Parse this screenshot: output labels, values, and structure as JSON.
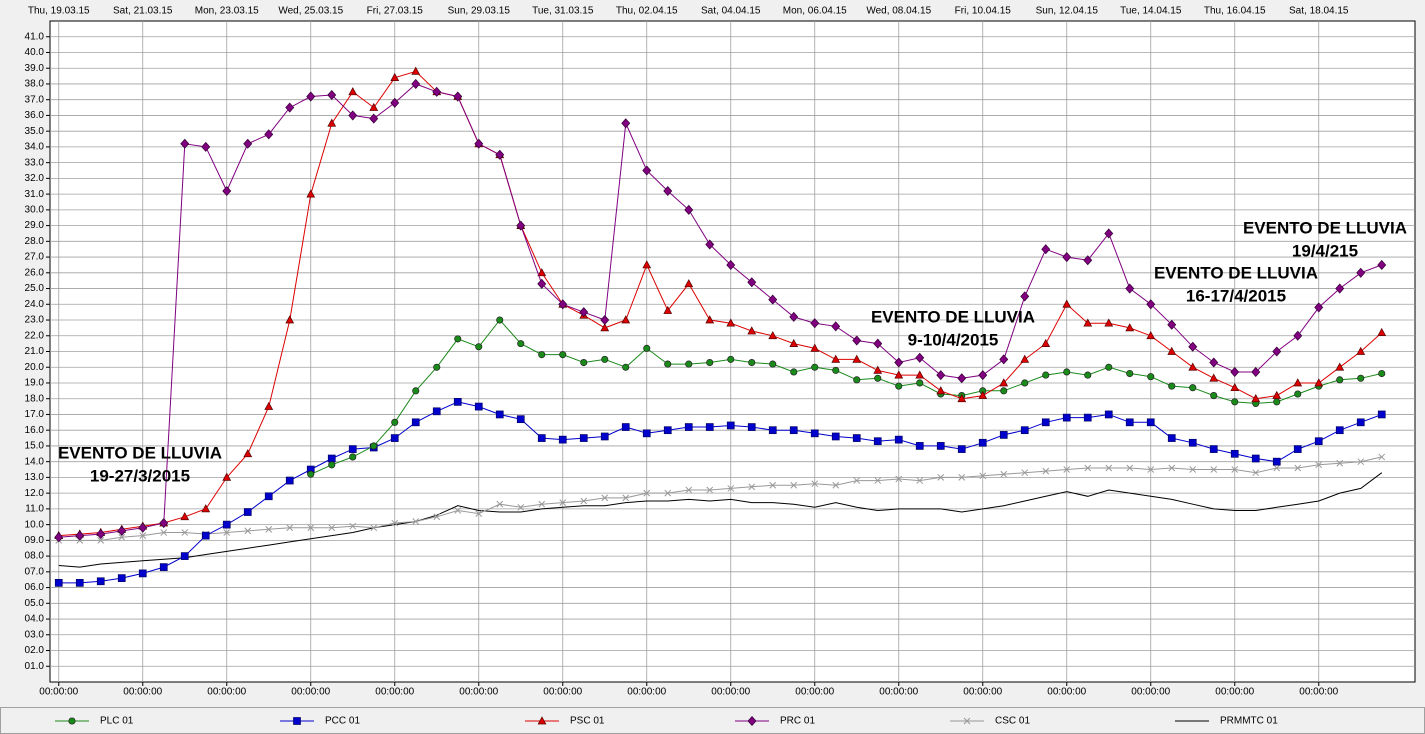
{
  "chart_data": {
    "type": "line",
    "x": [
      "2015-03-19T00:00",
      "2015-03-19T12:00",
      "2015-03-20T00:00",
      "2015-03-20T12:00",
      "2015-03-21T00:00",
      "2015-03-21T12:00",
      "2015-03-22T00:00",
      "2015-03-22T12:00",
      "2015-03-23T00:00",
      "2015-03-23T12:00",
      "2015-03-24T00:00",
      "2015-03-24T12:00",
      "2015-03-25T00:00",
      "2015-03-25T12:00",
      "2015-03-26T00:00",
      "2015-03-26T12:00",
      "2015-03-27T00:00",
      "2015-03-27T12:00",
      "2015-03-28T00:00",
      "2015-03-28T12:00",
      "2015-03-29T00:00",
      "2015-03-29T12:00",
      "2015-03-30T00:00",
      "2015-03-30T12:00",
      "2015-03-31T00:00",
      "2015-03-31T12:00",
      "2015-04-01T00:00",
      "2015-04-01T12:00",
      "2015-04-02T00:00",
      "2015-04-02T12:00",
      "2015-04-03T00:00",
      "2015-04-03T12:00",
      "2015-04-04T00:00",
      "2015-04-04T12:00",
      "2015-04-05T00:00",
      "2015-04-05T12:00",
      "2015-04-06T00:00",
      "2015-04-06T12:00",
      "2015-04-07T00:00",
      "2015-04-07T12:00",
      "2015-04-08T00:00",
      "2015-04-08T12:00",
      "2015-04-09T00:00",
      "2015-04-09T12:00",
      "2015-04-10T00:00",
      "2015-04-10T12:00",
      "2015-04-11T00:00",
      "2015-04-11T12:00",
      "2015-04-12T00:00",
      "2015-04-12T12:00",
      "2015-04-13T00:00",
      "2015-04-13T12:00",
      "2015-04-14T00:00",
      "2015-04-14T12:00",
      "2015-04-15T00:00",
      "2015-04-15T12:00",
      "2015-04-16T00:00",
      "2015-04-16T12:00",
      "2015-04-17T00:00",
      "2015-04-17T12:00",
      "2015-04-18T00:00",
      "2015-04-18T12:00",
      "2015-04-19T00:00",
      "2015-04-19T12:00"
    ],
    "series": [
      {
        "name": "PLC 01",
        "color": "#1a8a1a",
        "marker": "circle",
        "values": [
          null,
          null,
          null,
          null,
          null,
          null,
          null,
          null,
          null,
          null,
          null,
          null,
          13.2,
          13.8,
          14.3,
          15,
          16.5,
          18.5,
          20,
          21.8,
          21.3,
          23,
          21.5,
          20.8,
          20.8,
          20.3,
          20.5,
          20,
          21.2,
          20.2,
          20.2,
          20.3,
          20.5,
          20.3,
          20.2,
          19.7,
          20,
          19.8,
          19.2,
          19.3,
          18.8,
          19,
          18.3,
          18.2,
          18.5,
          18.5,
          19,
          19.5,
          19.7,
          19.5,
          20,
          19.6,
          19.4,
          18.8,
          18.7,
          18.2,
          17.8,
          17.7,
          17.8,
          18.3,
          18.8,
          19.2,
          19.3,
          19.6
        ]
      },
      {
        "name": "PCC 01",
        "color": "#0000cc",
        "marker": "square",
        "values": [
          6.3,
          6.3,
          6.4,
          6.6,
          6.9,
          7.3,
          8,
          9.3,
          10,
          10.8,
          11.8,
          12.8,
          13.5,
          14.2,
          14.8,
          14.9,
          15.5,
          16.5,
          17.2,
          17.8,
          17.5,
          17,
          16.7,
          15.5,
          15.4,
          15.5,
          15.6,
          16.2,
          15.8,
          16,
          16.2,
          16.2,
          16.3,
          16.2,
          16,
          16,
          15.8,
          15.6,
          15.5,
          15.3,
          15.4,
          15,
          15,
          14.8,
          15.2,
          15.7,
          16,
          16.5,
          16.8,
          16.8,
          17,
          16.5,
          16.5,
          15.5,
          15.2,
          14.8,
          14.5,
          14.2,
          14,
          14.8,
          15.3,
          16,
          16.5,
          17
        ]
      },
      {
        "name": "PSC 01",
        "color": "#dd0000",
        "marker": "triangle",
        "values": [
          9.3,
          9.4,
          9.5,
          9.7,
          9.9,
          10.1,
          10.5,
          11,
          13,
          14.5,
          17.5,
          23,
          31,
          35.5,
          37.5,
          36.5,
          38.4,
          38.8,
          37.5,
          37.2,
          34.2,
          33.5,
          29,
          26,
          24,
          23.3,
          22.5,
          23,
          26.5,
          23.6,
          25.3,
          23,
          22.8,
          22.3,
          22,
          21.5,
          21.2,
          20.5,
          20.5,
          19.8,
          19.5,
          19.5,
          18.5,
          18,
          18.2,
          19,
          20.5,
          21.5,
          24,
          22.8,
          22.8,
          22.5,
          22,
          21,
          20,
          19.3,
          18.7,
          18,
          18.2,
          19,
          19,
          20,
          21,
          22.2
        ]
      },
      {
        "name": "PRC 01",
        "color": "#800080",
        "marker": "diamond",
        "values": [
          9.2,
          9.3,
          9.4,
          9.6,
          9.8,
          10.1,
          34.2,
          34,
          31.2,
          34.2,
          34.8,
          36.5,
          37.2,
          37.3,
          36,
          35.8,
          36.8,
          38,
          37.5,
          37.2,
          34.2,
          33.5,
          29,
          25.3,
          24,
          23.5,
          23,
          35.5,
          32.5,
          31.2,
          30,
          27.8,
          26.5,
          25.4,
          24.3,
          23.2,
          22.8,
          22.6,
          21.7,
          21.5,
          20.3,
          20.6,
          19.5,
          19.3,
          19.5,
          20.5,
          24.5,
          27.5,
          27,
          26.8,
          28.5,
          25,
          24,
          22.7,
          21.3,
          20.3,
          19.7,
          19.7,
          21,
          22,
          23.8,
          25,
          26,
          26.5
        ]
      },
      {
        "name": "CSC 01",
        "color": "#999999",
        "marker": "x",
        "values": [
          9,
          9,
          9,
          9.2,
          9.3,
          9.5,
          9.5,
          9.4,
          9.5,
          9.6,
          9.7,
          9.8,
          9.8,
          9.8,
          9.9,
          9.8,
          10.1,
          10.2,
          10.5,
          10.9,
          10.7,
          11.3,
          11.1,
          11.3,
          11.4,
          11.5,
          11.7,
          11.7,
          12,
          12,
          12.2,
          12.2,
          12.3,
          12.4,
          12.5,
          12.5,
          12.6,
          12.5,
          12.8,
          12.8,
          12.9,
          12.8,
          13,
          13,
          13.1,
          13.2,
          13.3,
          13.4,
          13.5,
          13.6,
          13.6,
          13.6,
          13.5,
          13.6,
          13.5,
          13.5,
          13.5,
          13.3,
          13.6,
          13.6,
          13.8,
          13.9,
          14,
          14.3
        ]
      },
      {
        "name": "PRMMTC 01",
        "color": "#000000",
        "marker": "none",
        "values": [
          7.4,
          7.3,
          7.5,
          7.6,
          7.7,
          7.8,
          7.9,
          8.1,
          8.3,
          8.5,
          8.7,
          8.9,
          9.1,
          9.3,
          9.5,
          9.8,
          10,
          10.2,
          10.6,
          11.2,
          10.9,
          10.8,
          10.8,
          11,
          11.1,
          11.2,
          11.2,
          11.4,
          11.5,
          11.5,
          11.6,
          11.5,
          11.6,
          11.4,
          11.4,
          11.3,
          11.1,
          11.4,
          11.1,
          10.9,
          11,
          11,
          11,
          10.8,
          11,
          11.2,
          11.5,
          11.8,
          12.1,
          11.8,
          12.2,
          12,
          11.8,
          11.6,
          11.3,
          11,
          10.9,
          10.9,
          11.1,
          11.3,
          11.5,
          12,
          12.3,
          13.3
        ]
      }
    ],
    "xlim": [
      "2015-03-18T19:00",
      "2015-04-20T07:00"
    ],
    "xticks": [
      {
        "value": "2015-03-19T00:00",
        "label": "Thu, 19.03.15"
      },
      {
        "value": "2015-03-21T00:00",
        "label": "Sat, 21.03.15"
      },
      {
        "value": "2015-03-23T00:00",
        "label": "Mon, 23.03.15"
      },
      {
        "value": "2015-03-25T00:00",
        "label": "Wed, 25.03.15"
      },
      {
        "value": "2015-03-27T00:00",
        "label": "Fri, 27.03.15"
      },
      {
        "value": "2015-03-29T00:00",
        "label": "Sun, 29.03.15"
      },
      {
        "value": "2015-03-31T00:00",
        "label": "Tue, 31.03.15"
      },
      {
        "value": "2015-04-02T00:00",
        "label": "Thu, 02.04.15"
      },
      {
        "value": "2015-04-04T00:00",
        "label": "Sat, 04.04.15"
      },
      {
        "value": "2015-04-06T00:00",
        "label": "Mon, 06.04.15"
      },
      {
        "value": "2015-04-08T00:00",
        "label": "Wed, 08.04.15"
      },
      {
        "value": "2015-04-10T00:00",
        "label": "Fri, 10.04.15"
      },
      {
        "value": "2015-04-12T00:00",
        "label": "Sun, 12.04.15"
      },
      {
        "value": "2015-04-14T00:00",
        "label": "Tue, 14.04.15"
      },
      {
        "value": "2015-04-16T00:00",
        "label": "Thu, 16.04.15"
      },
      {
        "value": "2015-04-18T00:00",
        "label": "Sat, 18.04.15"
      }
    ],
    "xticks_time": [
      {
        "value": "2015-03-19T00:00",
        "label": "00:00:00"
      },
      {
        "value": "2015-03-21T00:00",
        "label": "00:00:00"
      },
      {
        "value": "2015-03-23T00:00",
        "label": "00:00:00"
      },
      {
        "value": "2015-03-25T00:00",
        "label": "00:00:00"
      },
      {
        "value": "2015-03-27T00:00",
        "label": "00:00:00"
      },
      {
        "value": "2015-03-29T00:00",
        "label": "00:00:00"
      },
      {
        "value": "2015-03-31T00:00",
        "label": "00:00:00"
      },
      {
        "value": "2015-04-02T00:00",
        "label": "00:00:00"
      },
      {
        "value": "2015-04-04T00:00",
        "label": "00:00:00"
      },
      {
        "value": "2015-04-06T00:00",
        "label": "00:00:00"
      },
      {
        "value": "2015-04-08T00:00",
        "label": "00:00:00"
      },
      {
        "value": "2015-04-10T00:00",
        "label": "00:00:00"
      },
      {
        "value": "2015-04-12T00:00",
        "label": "00:00:00"
      },
      {
        "value": "2015-04-14T00:00",
        "label": "00:00:00"
      },
      {
        "value": "2015-04-16T00:00",
        "label": "00:00:00"
      },
      {
        "value": "2015-04-18T00:00",
        "label": "00:00:00"
      }
    ],
    "ylim": [
      0,
      42
    ],
    "yticks": [
      {
        "value": 1,
        "label": "01.0"
      },
      {
        "value": 2,
        "label": "02.0"
      },
      {
        "value": 3,
        "label": "03.0"
      },
      {
        "value": 4,
        "label": "04.0"
      },
      {
        "value": 5,
        "label": "05.0"
      },
      {
        "value": 6,
        "label": "06.0"
      },
      {
        "value": 7,
        "label": "07.0"
      },
      {
        "value": 8,
        "label": "08.0"
      },
      {
        "value": 9,
        "label": "09.0"
      },
      {
        "value": 10,
        "label": "10.0"
      },
      {
        "value": 11,
        "label": "11.0"
      },
      {
        "value": 12,
        "label": "12.0"
      },
      {
        "value": 13,
        "label": "13.0"
      },
      {
        "value": 14,
        "label": "14.0"
      },
      {
        "value": 15,
        "label": "15.0"
      },
      {
        "value": 16,
        "label": "16.0"
      },
      {
        "value": 17,
        "label": "17.0"
      },
      {
        "value": 18,
        "label": "18.0"
      },
      {
        "value": 19,
        "label": "19.0"
      },
      {
        "value": 20,
        "label": "20.0"
      },
      {
        "value": 21,
        "label": "21.0"
      },
      {
        "value": 22,
        "label": "22.0"
      },
      {
        "value": 23,
        "label": "23.0"
      },
      {
        "value": 24,
        "label": "24.0"
      },
      {
        "value": 25,
        "label": "25.0"
      },
      {
        "value": 26,
        "label": "26.0"
      },
      {
        "value": 27,
        "label": "27.0"
      },
      {
        "value": 28,
        "label": "28.0"
      },
      {
        "value": 29,
        "label": "29.0"
      },
      {
        "value": 30,
        "label": "30.0"
      },
      {
        "value": 31,
        "label": "31.0"
      },
      {
        "value": 32,
        "label": "32.0"
      },
      {
        "value": 33,
        "label": "33.0"
      },
      {
        "value": 34,
        "label": "34.0"
      },
      {
        "value": 35,
        "label": "35.0"
      },
      {
        "value": 36,
        "label": "36.0"
      },
      {
        "value": 37,
        "label": "37.0"
      },
      {
        "value": 38,
        "label": "38.0"
      },
      {
        "value": 39,
        "label": "39.0"
      },
      {
        "value": 40,
        "label": "40.0"
      },
      {
        "value": 41,
        "label": "41.0"
      }
    ],
    "grid": true,
    "legend": "bottom",
    "annotations": [
      [
        "EVENTO DE LLUVIA",
        "19-27/3/2015"
      ],
      [
        "EVENTO DE LLUVIA",
        "9-10/4/2015"
      ],
      [
        "EVENTO DE LLUVIA",
        "16-17/4/2015"
      ],
      [
        "EVENTO DE LLUVIA",
        "19/4/215"
      ]
    ]
  }
}
